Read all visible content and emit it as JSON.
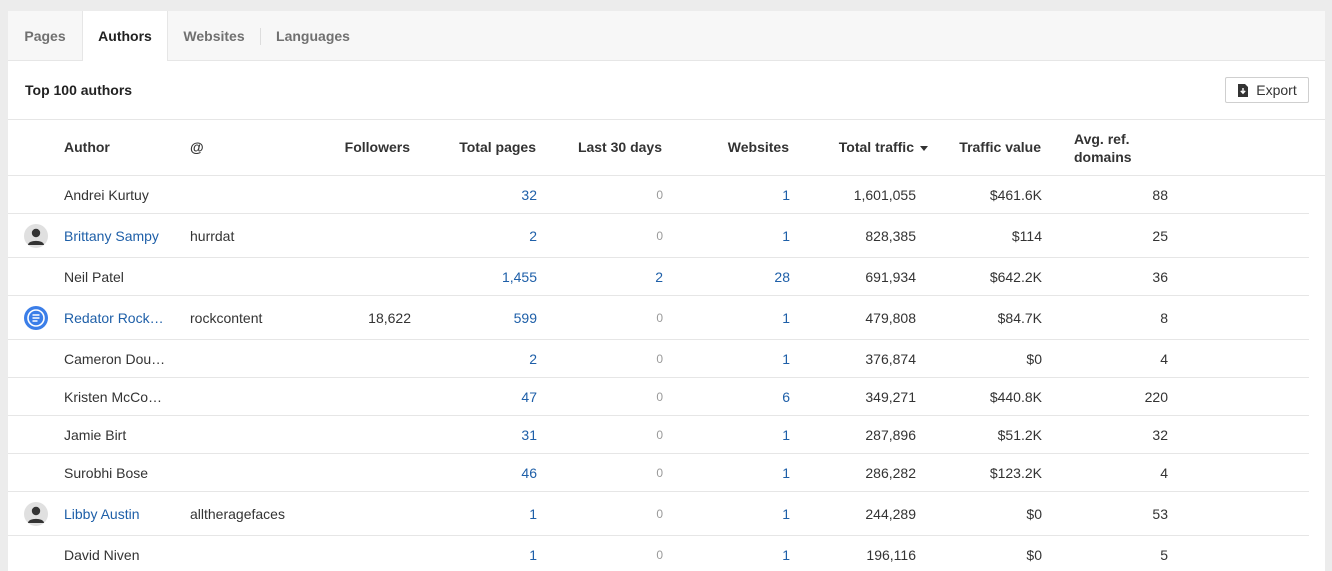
{
  "tabs": [
    {
      "label": "Pages",
      "active": false
    },
    {
      "label": "Authors",
      "active": true
    },
    {
      "label": "Websites",
      "active": false
    },
    {
      "label": "Languages",
      "active": false
    }
  ],
  "section": {
    "title": "Top 100 authors",
    "export_label": "Export"
  },
  "columns": {
    "author": "Author",
    "handle": "@",
    "followers": "Followers",
    "total_pages": "Total pages",
    "last_30_days": "Last 30 days",
    "websites": "Websites",
    "total_traffic": "Total traffic",
    "traffic_value": "Traffic value",
    "avg_ref_domains_1": "Avg. ref.",
    "avg_ref_domains_2": "domains"
  },
  "sort": {
    "column": "total_traffic",
    "direction": "desc"
  },
  "colors": {
    "link": "#1e5fa8",
    "muted": "#9a9a9a",
    "brand_avatar": "#3b7ee8"
  },
  "rows": [
    {
      "avatar": "none",
      "author": "Andrei Kurtuy",
      "author_link": false,
      "handle": "",
      "followers": "",
      "total_pages": "32",
      "last_30_days": "0",
      "websites": "1",
      "total_traffic": "1,601,055",
      "traffic_value": "$461.6K",
      "avg_ref_domains": "88"
    },
    {
      "avatar": "person-icon",
      "author": "Brittany Sampy",
      "author_link": true,
      "handle": "hurrdat",
      "followers": "",
      "total_pages": "2",
      "last_30_days": "0",
      "websites": "1",
      "total_traffic": "828,385",
      "traffic_value": "$114",
      "avg_ref_domains": "25"
    },
    {
      "avatar": "none",
      "author": "Neil Patel",
      "author_link": false,
      "handle": "",
      "followers": "",
      "total_pages": "1,455",
      "last_30_days": "2",
      "websites": "28",
      "total_traffic": "691,934",
      "traffic_value": "$642.2K",
      "avg_ref_domains": "36"
    },
    {
      "avatar": "document-icon",
      "author": "Redator Rock…",
      "author_link": true,
      "handle": "rockcontent",
      "followers": "18,622",
      "total_pages": "599",
      "last_30_days": "0",
      "websites": "1",
      "total_traffic": "479,808",
      "traffic_value": "$84.7K",
      "avg_ref_domains": "8"
    },
    {
      "avatar": "none",
      "author": "Cameron Dou…",
      "author_link": false,
      "handle": "",
      "followers": "",
      "total_pages": "2",
      "last_30_days": "0",
      "websites": "1",
      "total_traffic": "376,874",
      "traffic_value": "$0",
      "avg_ref_domains": "4"
    },
    {
      "avatar": "none",
      "author": "Kristen McCo…",
      "author_link": false,
      "handle": "",
      "followers": "",
      "total_pages": "47",
      "last_30_days": "0",
      "websites": "6",
      "total_traffic": "349,271",
      "traffic_value": "$440.8K",
      "avg_ref_domains": "220"
    },
    {
      "avatar": "none",
      "author": "Jamie Birt",
      "author_link": false,
      "handle": "",
      "followers": "",
      "total_pages": "31",
      "last_30_days": "0",
      "websites": "1",
      "total_traffic": "287,896",
      "traffic_value": "$51.2K",
      "avg_ref_domains": "32"
    },
    {
      "avatar": "none",
      "author": "Surobhi Bose",
      "author_link": false,
      "handle": "",
      "followers": "",
      "total_pages": "46",
      "last_30_days": "0",
      "websites": "1",
      "total_traffic": "286,282",
      "traffic_value": "$123.2K",
      "avg_ref_domains": "4"
    },
    {
      "avatar": "person-icon",
      "author": "Libby Austin",
      "author_link": true,
      "handle": "alltheragefaces",
      "followers": "",
      "total_pages": "1",
      "last_30_days": "0",
      "websites": "1",
      "total_traffic": "244,289",
      "traffic_value": "$0",
      "avg_ref_domains": "53"
    },
    {
      "avatar": "none",
      "author": "David Niven",
      "author_link": false,
      "handle": "",
      "followers": "",
      "total_pages": "1",
      "last_30_days": "0",
      "websites": "1",
      "total_traffic": "196,116",
      "traffic_value": "$0",
      "avg_ref_domains": "5"
    }
  ]
}
